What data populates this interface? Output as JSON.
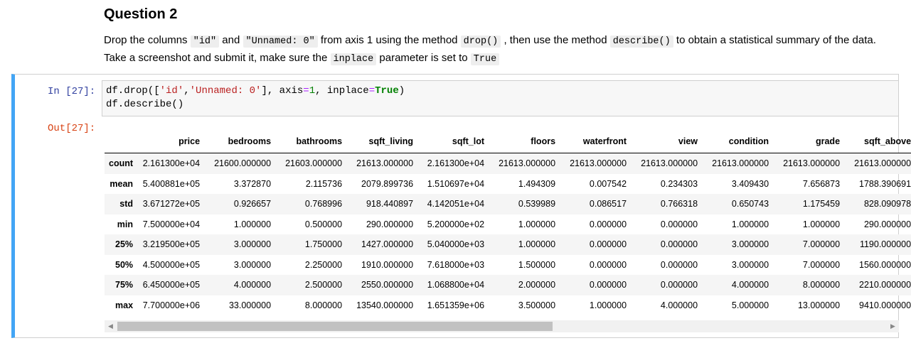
{
  "question": {
    "title": "Question 2",
    "desc": [
      {
        "t": "Drop the columns ",
        "code": false
      },
      {
        "t": "\"id\"",
        "code": true
      },
      {
        "t": " and ",
        "code": false
      },
      {
        "t": "\"Unnamed: 0\"",
        "code": true
      },
      {
        "t": " from axis 1 using the method ",
        "code": false
      },
      {
        "t": "drop()",
        "code": true
      },
      {
        "t": " , then use the method ",
        "code": false
      },
      {
        "t": "describe()",
        "code": true
      },
      {
        "t": " to obtain a statistical summary of the data. Take a screenshot and submit it, make sure the ",
        "code": false
      },
      {
        "t": "inplace",
        "code": true
      },
      {
        "t": " parameter is set to ",
        "code": false
      },
      {
        "t": "True",
        "code": true
      }
    ]
  },
  "cell": {
    "in_prompt": "In [27]:",
    "out_prompt": "Out[27]:",
    "code_lines": [
      [
        {
          "t": "df.drop([",
          "c": ""
        },
        {
          "t": "'id'",
          "c": "str"
        },
        {
          "t": ",",
          "c": ""
        },
        {
          "t": "'Unnamed: 0'",
          "c": "str"
        },
        {
          "t": "], axis",
          "c": ""
        },
        {
          "t": "=",
          "c": "op"
        },
        {
          "t": "1",
          "c": "num"
        },
        {
          "t": ", inplace",
          "c": ""
        },
        {
          "t": "=",
          "c": "op"
        },
        {
          "t": "True",
          "c": "kw"
        },
        {
          "t": ")",
          "c": ""
        }
      ],
      [
        {
          "t": "df.describe()",
          "c": ""
        }
      ]
    ]
  },
  "table": {
    "columns": [
      "price",
      "bedrooms",
      "bathrooms",
      "sqft_living",
      "sqft_lot",
      "floors",
      "waterfront",
      "view",
      "condition",
      "grade",
      "sqft_above"
    ],
    "rows": [
      {
        "label": "count",
        "values": [
          "2.161300e+04",
          "21600.000000",
          "21603.000000",
          "21613.000000",
          "2.161300e+04",
          "21613.000000",
          "21613.000000",
          "21613.000000",
          "21613.000000",
          "21613.000000",
          "21613.000000"
        ]
      },
      {
        "label": "mean",
        "values": [
          "5.400881e+05",
          "3.372870",
          "2.115736",
          "2079.899736",
          "1.510697e+04",
          "1.494309",
          "0.007542",
          "0.234303",
          "3.409430",
          "7.656873",
          "1788.390691"
        ]
      },
      {
        "label": "std",
        "values": [
          "3.671272e+05",
          "0.926657",
          "0.768996",
          "918.440897",
          "4.142051e+04",
          "0.539989",
          "0.086517",
          "0.766318",
          "0.650743",
          "1.175459",
          "828.090978"
        ]
      },
      {
        "label": "min",
        "values": [
          "7.500000e+04",
          "1.000000",
          "0.500000",
          "290.000000",
          "5.200000e+02",
          "1.000000",
          "0.000000",
          "0.000000",
          "1.000000",
          "1.000000",
          "290.000000"
        ]
      },
      {
        "label": "25%",
        "values": [
          "3.219500e+05",
          "3.000000",
          "1.750000",
          "1427.000000",
          "5.040000e+03",
          "1.000000",
          "0.000000",
          "0.000000",
          "3.000000",
          "7.000000",
          "1190.000000"
        ]
      },
      {
        "label": "50%",
        "values": [
          "4.500000e+05",
          "3.000000",
          "2.250000",
          "1910.000000",
          "7.618000e+03",
          "1.500000",
          "0.000000",
          "0.000000",
          "3.000000",
          "7.000000",
          "1560.000000"
        ]
      },
      {
        "label": "75%",
        "values": [
          "6.450000e+05",
          "4.000000",
          "2.500000",
          "2550.000000",
          "1.068800e+04",
          "2.000000",
          "0.000000",
          "0.000000",
          "4.000000",
          "8.000000",
          "2210.000000"
        ]
      },
      {
        "label": "max",
        "values": [
          "7.700000e+06",
          "33.000000",
          "8.000000",
          "13540.000000",
          "1.651359e+06",
          "3.500000",
          "1.000000",
          "4.000000",
          "5.000000",
          "13.000000",
          "9410.000000"
        ]
      }
    ]
  },
  "scrollbar": {
    "left_arrow": "◀",
    "right_arrow": "▶"
  }
}
